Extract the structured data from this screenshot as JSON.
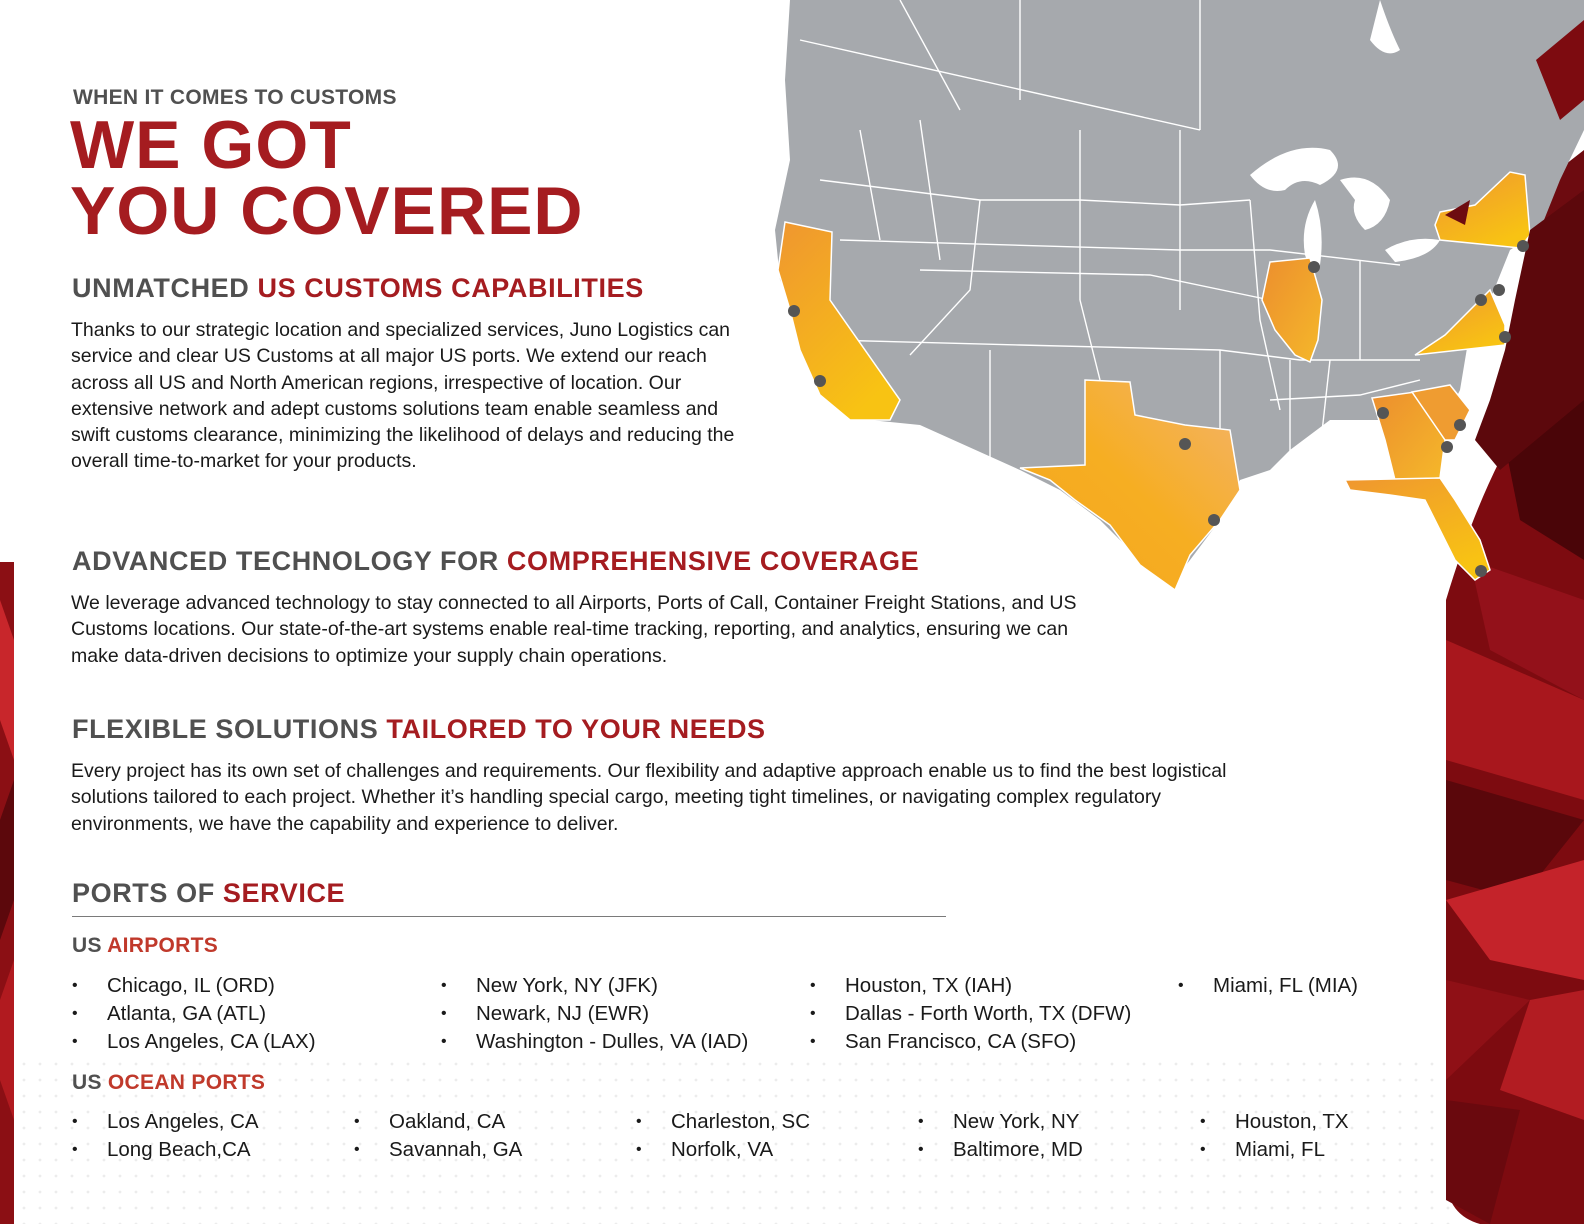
{
  "colors": {
    "brand_red": "#a51c20",
    "heading_gray": "#505050",
    "map_gray": "#a6a9ad",
    "highlight_orange": "#f4b324",
    "dark_red_bg": "#6d0b10"
  },
  "eyebrow": "WHEN IT COMES TO CUSTOMS",
  "hero": {
    "line1": "WE GOT",
    "line2": "YOU COVERED"
  },
  "map": {
    "highlighted_states": [
      "California",
      "Texas",
      "Illinois",
      "Georgia",
      "South Carolina",
      "Florida",
      "Virginia",
      "New York"
    ],
    "marker_icon": "location-dot-icon"
  },
  "sections": [
    {
      "heading_plain": "UNMATCHED ",
      "heading_accent": "US CUSTOMS CAPABILITIES",
      "body": "Thanks to our strategic location and specialized services, Juno Logistics can service and clear US Customs at all major US ports. We extend our reach across all US and North American regions, irrespective of location. Our extensive network and adept customs solutions team enable seamless and swift customs clearance, minimizing the likelihood of delays and reducing the overall time-to-market for your products."
    },
    {
      "heading_plain": "ADVANCED TECHNOLOGY FOR ",
      "heading_accent": "COMPREHENSIVE COVERAGE",
      "body": "We leverage advanced technology to stay connected to all Airports, Ports of Call, Container Freight Stations, and US Customs locations. Our state-of-the-art systems enable real-time tracking, reporting, and analytics, ensuring we can make data-driven decisions to optimize your supply chain operations."
    },
    {
      "heading_plain": "FLEXIBLE SOLUTIONS ",
      "heading_accent": "TAILORED TO YOUR NEEDS",
      "body": "Every project has its own set of challenges and requirements. Our flexibility and adaptive approach enable us to find the best logistical solutions tailored to each project. Whether it’s handling special cargo, meeting tight timelines, or navigating complex regulatory environments, we have the capability and experience to deliver."
    }
  ],
  "ports": {
    "heading_plain": "PORTS OF ",
    "heading_accent": "SERVICE",
    "airports": {
      "heading_plain": "US ",
      "heading_accent": "AIRPORTS",
      "columns": [
        [
          "Chicago, IL (ORD)",
          "Atlanta, GA (ATL)",
          "Los Angeles, CA (LAX)"
        ],
        [
          "New York, NY (JFK)",
          "Newark, NJ (EWR)",
          "Washington - Dulles, VA (IAD)"
        ],
        [
          "Houston, TX (IAH)",
          "Dallas - Forth Worth, TX (DFW)",
          "San Francisco, CA (SFO)"
        ],
        [
          "Miami, FL (MIA)"
        ]
      ]
    },
    "ocean": {
      "heading_plain": "US ",
      "heading_accent": "OCEAN PORTS",
      "columns": [
        [
          "Los Angeles, CA",
          "Long Beach,CA"
        ],
        [
          "Oakland, CA",
          "Savannah, GA"
        ],
        [
          "Charleston, SC",
          "Norfolk, VA"
        ],
        [
          "New York, NY",
          "Baltimore, MD"
        ],
        [
          "Houston, TX",
          "Miami, FL"
        ]
      ]
    }
  }
}
